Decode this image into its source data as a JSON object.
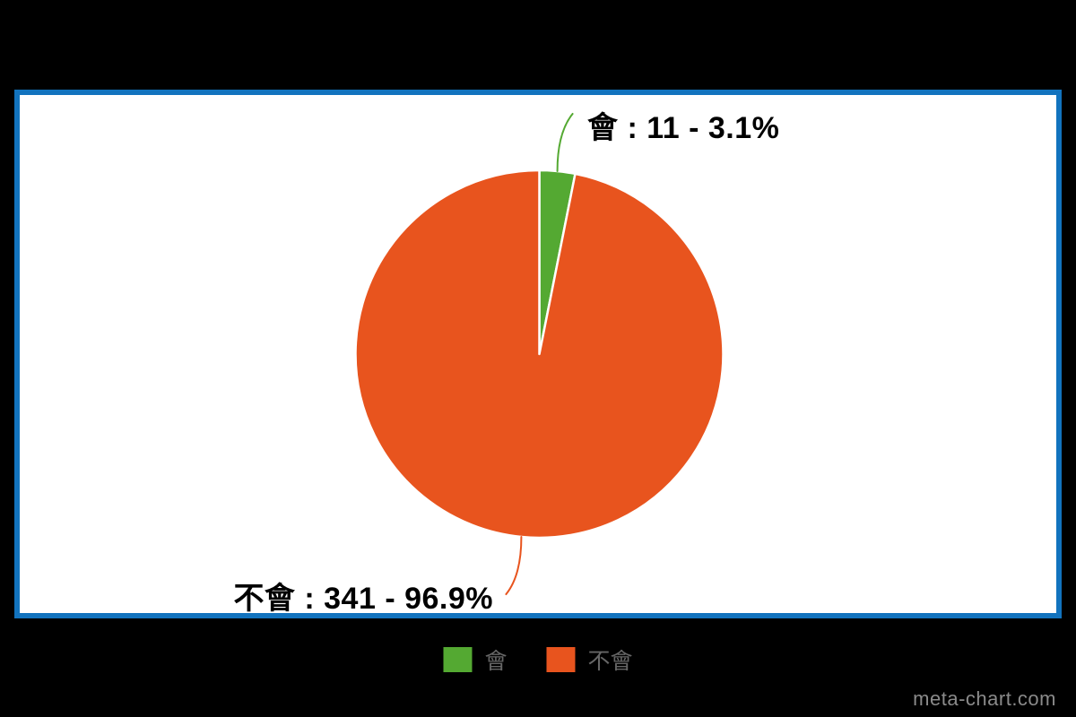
{
  "page": {
    "background_color": "#000000",
    "watermark": "meta-chart.com"
  },
  "chart_data": {
    "type": "pie",
    "title": "",
    "legend_position": "bottom",
    "plot_background": "#ffffff",
    "plot_border_color": "#1273be",
    "label_text_color": "#000000",
    "legend_text_color": "#666666",
    "slices": [
      {
        "label": "會",
        "value": 11,
        "percent": 3.1,
        "color": "#54a932",
        "callout_label": "會 : 11 - 3.1%",
        "callout_side": "right"
      },
      {
        "label": "不會",
        "value": 341,
        "percent": 96.9,
        "color": "#e8541e",
        "callout_label": "不會 : 341 - 96.9%",
        "callout_side": "left"
      }
    ]
  }
}
